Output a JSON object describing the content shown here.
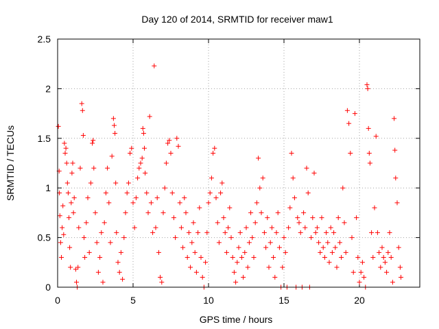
{
  "chart_data": {
    "type": "scatter",
    "title": "Day 120 of 2014, SRMTID for receiver maw1",
    "xlabel": "GPS time / hours",
    "ylabel": "SRMTID / TECUs",
    "xlim": [
      0,
      24
    ],
    "ylim": [
      0,
      2.5
    ],
    "xticks": [
      0,
      5,
      10,
      15,
      20
    ],
    "xtick_labels": [
      "0",
      "5",
      "10",
      "15",
      "20"
    ],
    "yticks": [
      0,
      0.5,
      1,
      1.5,
      2,
      2.5
    ],
    "ytick_labels": [
      "0",
      "0.5",
      "1",
      "1.5",
      "2",
      "2.5"
    ],
    "grid": true,
    "marker": "+",
    "series_color": "#ff0000",
    "series": [
      {
        "name": "maw1",
        "points": [
          [
            0.05,
            1.62
          ],
          [
            0.1,
            1.17
          ],
          [
            0.12,
            0.95
          ],
          [
            0.15,
            0.72
          ],
          [
            0.2,
            0.45
          ],
          [
            0.25,
            0.3
          ],
          [
            0.3,
            0.6
          ],
          [
            0.35,
            0.82
          ],
          [
            0.4,
            0.53
          ],
          [
            0.45,
            1.45
          ],
          [
            0.5,
            1.35
          ],
          [
            0.55,
            1.4
          ],
          [
            0.6,
            1.25
          ],
          [
            0.65,
            1.05
          ],
          [
            0.7,
            0.95
          ],
          [
            0.75,
            0.7
          ],
          [
            0.8,
            0.4
          ],
          [
            0.85,
            0.2
          ],
          [
            0.9,
            0.85
          ],
          [
            0.95,
            1.15
          ],
          [
            1.0,
            1.25
          ],
          [
            1.05,
            0.75
          ],
          [
            1.1,
            0.9
          ],
          [
            1.2,
            0.18
          ],
          [
            1.25,
            0.05
          ],
          [
            1.3,
            0.0
          ],
          [
            1.35,
            0.2
          ],
          [
            1.4,
            0.6
          ],
          [
            1.5,
            1.2
          ],
          [
            1.6,
            1.85
          ],
          [
            1.65,
            1.78
          ],
          [
            1.7,
            1.53
          ],
          [
            1.75,
            0.5
          ],
          [
            1.8,
            0.3
          ],
          [
            1.9,
            0.65
          ],
          [
            2.0,
            0.9
          ],
          [
            2.1,
            0.35
          ],
          [
            2.2,
            1.05
          ],
          [
            2.3,
            1.45
          ],
          [
            2.35,
            1.48
          ],
          [
            2.4,
            1.2
          ],
          [
            2.5,
            0.75
          ],
          [
            2.6,
            0.45
          ],
          [
            2.7,
            0.15
          ],
          [
            2.8,
            0.3
          ],
          [
            2.9,
            0.55
          ],
          [
            3.0,
            0.05
          ],
          [
            3.1,
            0.65
          ],
          [
            3.2,
            0.95
          ],
          [
            3.3,
            1.2
          ],
          [
            3.4,
            0.85
          ],
          [
            3.5,
            0.45
          ],
          [
            3.6,
            1.32
          ],
          [
            3.7,
            1.7
          ],
          [
            3.75,
            1.63
          ],
          [
            3.8,
            1.55
          ],
          [
            3.85,
            1.05
          ],
          [
            3.9,
            0.55
          ],
          [
            4.0,
            0.25
          ],
          [
            4.1,
            0.15
          ],
          [
            4.2,
            0.35
          ],
          [
            4.3,
            0.08
          ],
          [
            4.4,
            0.5
          ],
          [
            4.5,
            0.75
          ],
          [
            4.6,
            0.95
          ],
          [
            4.7,
            1.05
          ],
          [
            4.8,
            1.35
          ],
          [
            4.9,
            1.4
          ],
          [
            5.0,
            0.85
          ],
          [
            5.1,
            0.6
          ],
          [
            5.2,
            0.9
          ],
          [
            5.3,
            1.1
          ],
          [
            5.4,
            1.2
          ],
          [
            5.5,
            1.25
          ],
          [
            5.6,
            1.3
          ],
          [
            5.65,
            1.6
          ],
          [
            5.7,
            1.55
          ],
          [
            5.75,
            1.4
          ],
          [
            5.8,
            1.15
          ],
          [
            5.9,
            0.95
          ],
          [
            6.0,
            0.75
          ],
          [
            6.1,
            1.72
          ],
          [
            6.2,
            0.85
          ],
          [
            6.3,
            0.55
          ],
          [
            6.4,
            2.23
          ],
          [
            6.5,
            0.6
          ],
          [
            6.6,
            0.9
          ],
          [
            6.7,
            0.35
          ],
          [
            6.8,
            0.1
          ],
          [
            6.9,
            0.05
          ],
          [
            7.0,
            0.75
          ],
          [
            7.1,
            1.0
          ],
          [
            7.2,
            1.25
          ],
          [
            7.3,
            1.45
          ],
          [
            7.4,
            1.48
          ],
          [
            7.5,
            1.35
          ],
          [
            7.6,
            0.95
          ],
          [
            7.7,
            0.7
          ],
          [
            7.8,
            0.5
          ],
          [
            7.9,
            1.5
          ],
          [
            8.0,
            1.42
          ],
          [
            8.1,
            0.85
          ],
          [
            8.2,
            0.6
          ],
          [
            8.3,
            0.4
          ],
          [
            8.4,
            0.9
          ],
          [
            8.5,
            0.75
          ],
          [
            8.6,
            0.3
          ],
          [
            8.7,
            0.55
          ],
          [
            8.8,
            0.2
          ],
          [
            8.9,
            0.45
          ],
          [
            9.0,
            0.65
          ],
          [
            9.1,
            0.35
          ],
          [
            9.2,
            0.15
          ],
          [
            9.3,
            0.55
          ],
          [
            9.4,
            0.8
          ],
          [
            9.5,
            0.3
          ],
          [
            9.6,
            0.1
          ],
          [
            9.7,
            0.0
          ],
          [
            9.8,
            0.25
          ],
          [
            9.9,
            0.55
          ],
          [
            10.0,
            0.85
          ],
          [
            10.1,
            0.95
          ],
          [
            10.2,
            1.1
          ],
          [
            10.3,
            1.35
          ],
          [
            10.4,
            1.4
          ],
          [
            10.5,
            0.9
          ],
          [
            10.6,
            0.65
          ],
          [
            10.7,
            0.45
          ],
          [
            10.8,
            0.95
          ],
          [
            10.9,
            1.05
          ],
          [
            11.0,
            0.7
          ],
          [
            11.1,
            0.55
          ],
          [
            11.2,
            0.35
          ],
          [
            11.3,
            0.6
          ],
          [
            11.4,
            0.8
          ],
          [
            11.5,
            0.5
          ],
          [
            11.6,
            0.3
          ],
          [
            11.7,
            0.15
          ],
          [
            11.8,
            0.05
          ],
          [
            11.9,
            0.25
          ],
          [
            12.0,
            0.4
          ],
          [
            12.1,
            0.55
          ],
          [
            12.2,
            0.3
          ],
          [
            12.3,
            0.1
          ],
          [
            12.4,
            0.35
          ],
          [
            12.5,
            0.6
          ],
          [
            12.6,
            0.2
          ],
          [
            12.7,
            0.45
          ],
          [
            12.8,
            0.75
          ],
          [
            12.9,
            0.5
          ],
          [
            13.0,
            0.3
          ],
          [
            13.1,
            0.65
          ],
          [
            13.2,
            0.85
          ],
          [
            13.3,
            1.3
          ],
          [
            13.4,
            1.0
          ],
          [
            13.5,
            0.75
          ],
          [
            13.6,
            1.1
          ],
          [
            13.7,
            0.55
          ],
          [
            13.8,
            0.4
          ],
          [
            13.9,
            0.7
          ],
          [
            14.0,
            0.2
          ],
          [
            14.1,
            0.45
          ],
          [
            14.2,
            0.6
          ],
          [
            14.3,
            0.3
          ],
          [
            14.4,
            0.1
          ],
          [
            14.5,
            0.55
          ],
          [
            14.6,
            0.75
          ],
          [
            14.7,
            0.4
          ],
          [
            14.8,
            0.0
          ],
          [
            14.9,
            0.2
          ],
          [
            15.0,
            0.5
          ],
          [
            15.1,
            0.35
          ],
          [
            15.2,
            0.0
          ],
          [
            15.3,
            0.6
          ],
          [
            15.4,
            0.8
          ],
          [
            15.5,
            1.35
          ],
          [
            15.6,
            1.1
          ],
          [
            15.7,
            0.9
          ],
          [
            15.8,
            0.0
          ],
          [
            15.9,
            0.7
          ],
          [
            16.0,
            0.65
          ],
          [
            16.1,
            0.55
          ],
          [
            16.2,
            0.0
          ],
          [
            16.3,
            0.75
          ],
          [
            16.4,
            0.6
          ],
          [
            16.5,
            1.2
          ],
          [
            16.6,
            0.95
          ],
          [
            16.7,
            0.0
          ],
          [
            16.8,
            0.5
          ],
          [
            16.9,
            0.7
          ],
          [
            17.0,
            1.15
          ],
          [
            17.1,
            0.55
          ],
          [
            17.2,
            0.6
          ],
          [
            17.3,
            0.45
          ],
          [
            17.4,
            0.35
          ],
          [
            17.5,
            0.7
          ],
          [
            17.6,
            0.4
          ],
          [
            17.7,
            0.3
          ],
          [
            17.8,
            0.55
          ],
          [
            17.9,
            0.45
          ],
          [
            18.0,
            0.25
          ],
          [
            18.1,
            0.6
          ],
          [
            18.2,
            0.35
          ],
          [
            18.3,
            0.55
          ],
          [
            18.4,
            0.4
          ],
          [
            18.5,
            0.2
          ],
          [
            18.6,
            0.7
          ],
          [
            18.7,
            0.45
          ],
          [
            18.8,
            0.3
          ],
          [
            18.9,
            1.0
          ],
          [
            19.0,
            0.65
          ],
          [
            19.1,
            0.35
          ],
          [
            19.2,
            1.78
          ],
          [
            19.3,
            1.65
          ],
          [
            19.4,
            1.35
          ],
          [
            19.5,
            0.5
          ],
          [
            19.6,
            0.15
          ],
          [
            19.7,
            1.75
          ],
          [
            19.8,
            0.7
          ],
          [
            19.9,
            0.3
          ],
          [
            20.0,
            0.05
          ],
          [
            20.1,
            0.15
          ],
          [
            20.2,
            0.25
          ],
          [
            20.3,
            0.1
          ],
          [
            20.4,
            0.0
          ],
          [
            20.5,
            2.04
          ],
          [
            20.55,
            2.0
          ],
          [
            20.6,
            1.6
          ],
          [
            20.65,
            1.35
          ],
          [
            20.7,
            1.25
          ],
          [
            20.8,
            0.55
          ],
          [
            20.9,
            0.3
          ],
          [
            21.0,
            0.8
          ],
          [
            21.1,
            1.52
          ],
          [
            21.2,
            0.55
          ],
          [
            21.3,
            0.35
          ],
          [
            21.4,
            0.2
          ],
          [
            21.5,
            0.4
          ],
          [
            21.6,
            0.3
          ],
          [
            21.7,
            0.25
          ],
          [
            21.8,
            0.15
          ],
          [
            21.9,
            0.35
          ],
          [
            22.0,
            0.55
          ],
          [
            22.1,
            0.3
          ],
          [
            22.2,
            0.05
          ],
          [
            22.3,
            1.7
          ],
          [
            22.35,
            1.38
          ],
          [
            22.4,
            1.1
          ],
          [
            22.5,
            0.85
          ],
          [
            22.6,
            0.4
          ],
          [
            22.7,
            0.2
          ],
          [
            22.75,
            0.1
          ]
        ]
      }
    ]
  }
}
